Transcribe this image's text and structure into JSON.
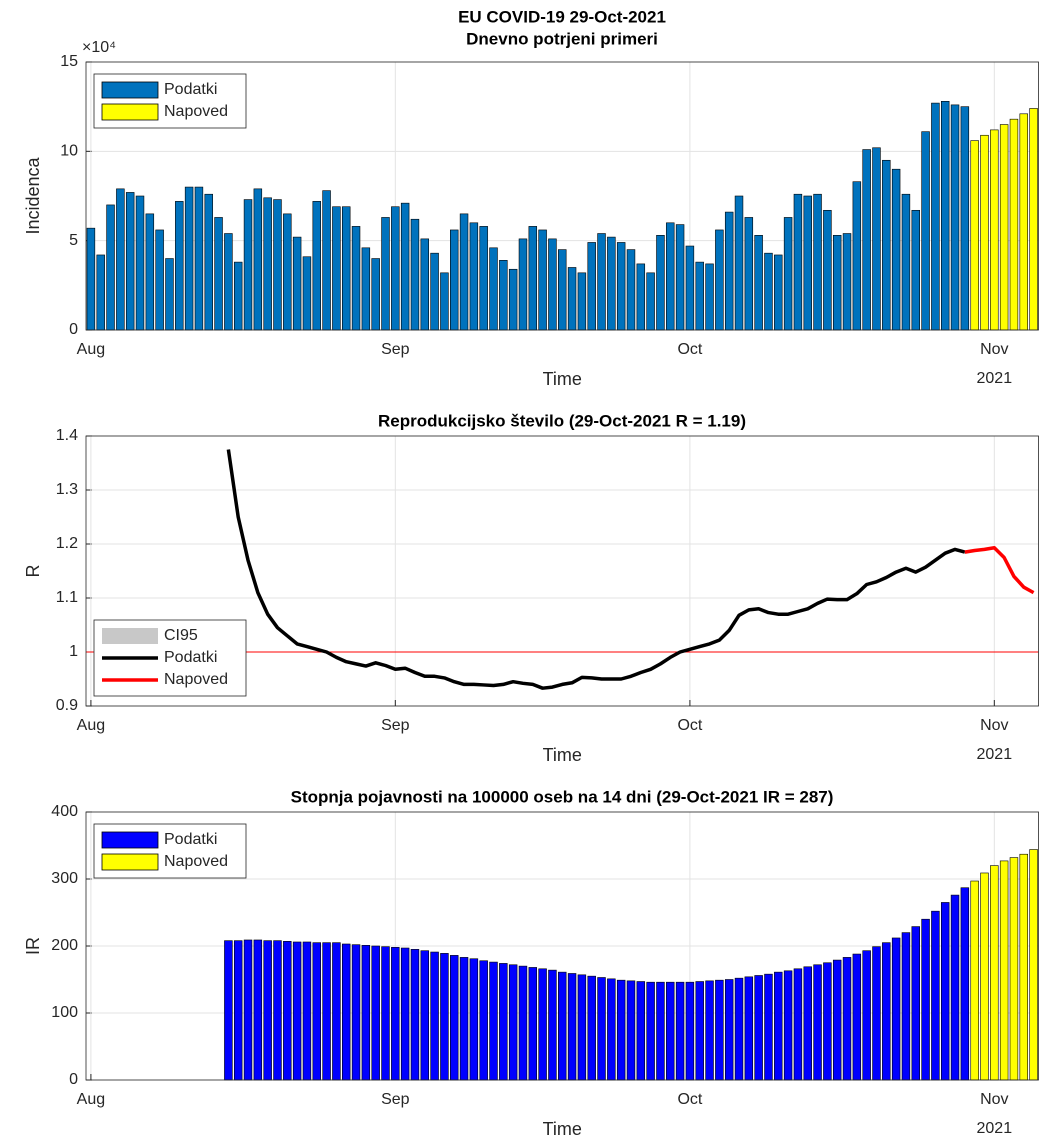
{
  "chart_data": [
    {
      "type": "bar",
      "title": "EU COVID-19 29-Oct-2021",
      "subtitle": "Dnevno potrjeni primeri",
      "xlabel": "Time",
      "x_sublabel": "2021",
      "ylabel": "Incidenca",
      "y_multiplier": "×10⁴",
      "ylim": [
        0,
        15
      ],
      "yticks": [
        0,
        5,
        10,
        15
      ],
      "grid": true,
      "legend": "upper left",
      "categories": [
        "Aug",
        null,
        null,
        null,
        null,
        null,
        null,
        null,
        null,
        null,
        null,
        null,
        null,
        null,
        null,
        null,
        null,
        null,
        null,
        null,
        null,
        null,
        null,
        null,
        null,
        null,
        null,
        null,
        null,
        null,
        null,
        "Sep",
        null,
        null,
        null,
        null,
        null,
        null,
        null,
        null,
        null,
        null,
        null,
        null,
        null,
        null,
        null,
        null,
        null,
        null,
        null,
        null,
        null,
        null,
        null,
        null,
        null,
        null,
        null,
        null,
        null,
        "Oct",
        null,
        null,
        null,
        null,
        null,
        null,
        null,
        null,
        null,
        null,
        null,
        null,
        null,
        null,
        null,
        null,
        null,
        null,
        null,
        null,
        null,
        null,
        null,
        null,
        null,
        null,
        null,
        null,
        null,
        null,
        "Nov",
        null,
        null,
        null,
        null
      ],
      "series": [
        {
          "name": "Podatki",
          "color": "#0072BD",
          "values": [
            5.7,
            4.2,
            7.0,
            7.9,
            7.7,
            7.5,
            6.5,
            5.6,
            4.0,
            7.2,
            8.0,
            8.0,
            7.6,
            6.3,
            5.4,
            3.8,
            7.3,
            7.9,
            7.4,
            7.3,
            6.5,
            5.2,
            4.1,
            7.2,
            7.8,
            6.9,
            6.9,
            5.8,
            4.6,
            4.0,
            6.3,
            6.9,
            7.1,
            6.2,
            5.1,
            4.3,
            3.2,
            5.6,
            6.5,
            6.0,
            5.8,
            4.6,
            3.9,
            3.4,
            5.1,
            5.8,
            5.6,
            5.1,
            4.5,
            3.5,
            3.2,
            4.9,
            5.4,
            5.2,
            4.9,
            4.5,
            3.7,
            3.2,
            5.3,
            6.0,
            5.9,
            4.7,
            3.8,
            3.7,
            5.6,
            6.6,
            7.5,
            6.3,
            5.3,
            4.3,
            4.2,
            6.3,
            7.6,
            7.5,
            7.6,
            6.7,
            5.3,
            5.4,
            8.3,
            10.1,
            10.2,
            9.5,
            9.0,
            7.6,
            6.7,
            11.1,
            12.7,
            12.8,
            12.6,
            12.5,
            null,
            null,
            null,
            null,
            null,
            null,
            null
          ]
        },
        {
          "name": "Napoved",
          "color": "#FFFF00",
          "values": [
            null,
            null,
            null,
            null,
            null,
            null,
            null,
            null,
            null,
            null,
            null,
            null,
            null,
            null,
            null,
            null,
            null,
            null,
            null,
            null,
            null,
            null,
            null,
            null,
            null,
            null,
            null,
            null,
            null,
            null,
            null,
            null,
            null,
            null,
            null,
            null,
            null,
            null,
            null,
            null,
            null,
            null,
            null,
            null,
            null,
            null,
            null,
            null,
            null,
            null,
            null,
            null,
            null,
            null,
            null,
            null,
            null,
            null,
            null,
            null,
            null,
            null,
            null,
            null,
            null,
            null,
            null,
            null,
            null,
            null,
            null,
            null,
            null,
            null,
            null,
            null,
            null,
            null,
            null,
            null,
            null,
            null,
            null,
            null,
            null,
            null,
            null,
            null,
            null,
            null,
            10.6,
            10.9,
            11.2,
            11.5,
            11.8,
            12.1,
            12.4
          ]
        }
      ]
    },
    {
      "type": "line",
      "title": "Reprodukcijsko število (29-Oct-2021 R = 1.19)",
      "xlabel": "Time",
      "x_sublabel": "2021",
      "ylabel": "R",
      "ylim": [
        0.9,
        1.4
      ],
      "yticks": [
        0.9,
        1,
        1.1,
        1.2,
        1.3,
        1.4
      ],
      "grid": true,
      "legend": "lower left",
      "hline": 1,
      "hline_color": "#FF0000",
      "legend_patches": [
        {
          "name": "CI95",
          "color": "#C8C8C8"
        }
      ],
      "categories": [
        "Aug",
        null,
        null,
        null,
        null,
        null,
        null,
        null,
        null,
        null,
        null,
        null,
        null,
        null,
        null,
        null,
        null,
        null,
        null,
        null,
        null,
        null,
        null,
        null,
        null,
        null,
        null,
        null,
        null,
        null,
        null,
        "Sep",
        null,
        null,
        null,
        null,
        null,
        null,
        null,
        null,
        null,
        null,
        null,
        null,
        null,
        null,
        null,
        null,
        null,
        null,
        null,
        null,
        null,
        null,
        null,
        null,
        null,
        null,
        null,
        null,
        null,
        "Oct",
        null,
        null,
        null,
        null,
        null,
        null,
        null,
        null,
        null,
        null,
        null,
        null,
        null,
        null,
        null,
        null,
        null,
        null,
        null,
        null,
        null,
        null,
        null,
        null,
        null,
        null,
        null,
        null,
        null,
        null,
        "Nov",
        null,
        null,
        null,
        null
      ],
      "series": [
        {
          "name": "Podatki",
          "color": "#000000",
          "values": [
            null,
            null,
            null,
            null,
            null,
            null,
            null,
            null,
            null,
            null,
            null,
            null,
            null,
            null,
            1.375,
            1.25,
            1.17,
            1.11,
            1.07,
            1.045,
            1.03,
            1.015,
            1.01,
            1.005,
            1.0,
            0.99,
            0.982,
            0.978,
            0.974,
            0.98,
            0.975,
            0.968,
            0.97,
            0.962,
            0.955,
            0.955,
            0.952,
            0.945,
            0.94,
            0.94,
            0.939,
            0.938,
            0.94,
            0.945,
            0.942,
            0.94,
            0.933,
            0.935,
            0.94,
            0.943,
            0.953,
            0.952,
            0.95,
            0.95,
            0.95,
            0.955,
            0.962,
            0.968,
            0.978,
            0.99,
            1.0,
            1.005,
            1.01,
            1.015,
            1.022,
            1.04,
            1.068,
            1.078,
            1.08,
            1.073,
            1.07,
            1.07,
            1.075,
            1.08,
            1.09,
            1.098,
            1.097,
            1.097,
            1.108,
            1.125,
            1.13,
            1.138,
            1.148,
            1.155,
            1.148,
            1.157,
            1.17,
            1.183,
            1.19,
            1.185,
            null,
            null,
            null,
            null,
            null,
            null,
            null
          ]
        },
        {
          "name": "Napoved",
          "color": "#FF0000",
          "values": [
            null,
            null,
            null,
            null,
            null,
            null,
            null,
            null,
            null,
            null,
            null,
            null,
            null,
            null,
            null,
            null,
            null,
            null,
            null,
            null,
            null,
            null,
            null,
            null,
            null,
            null,
            null,
            null,
            null,
            null,
            null,
            null,
            null,
            null,
            null,
            null,
            null,
            null,
            null,
            null,
            null,
            null,
            null,
            null,
            null,
            null,
            null,
            null,
            null,
            null,
            null,
            null,
            null,
            null,
            null,
            null,
            null,
            null,
            null,
            null,
            null,
            null,
            null,
            null,
            null,
            null,
            null,
            null,
            null,
            null,
            null,
            null,
            null,
            null,
            null,
            null,
            null,
            null,
            null,
            null,
            null,
            null,
            null,
            null,
            null,
            null,
            null,
            null,
            null,
            1.185,
            1.188,
            1.19,
            1.193,
            1.175,
            1.14,
            1.12,
            1.11
          ]
        }
      ]
    },
    {
      "type": "bar",
      "title": "Stopnja pojavnosti na 100000 oseb na 14 dni (29-Oct-2021 IR = 287)",
      "xlabel": "Time",
      "x_sublabel": "2021",
      "ylabel": "IR",
      "ylim": [
        0,
        400
      ],
      "yticks": [
        0,
        100,
        200,
        300,
        400
      ],
      "grid": true,
      "legend": "upper left",
      "categories": [
        "Aug",
        null,
        null,
        null,
        null,
        null,
        null,
        null,
        null,
        null,
        null,
        null,
        null,
        null,
        null,
        null,
        null,
        null,
        null,
        null,
        null,
        null,
        null,
        null,
        null,
        null,
        null,
        null,
        null,
        null,
        null,
        "Sep",
        null,
        null,
        null,
        null,
        null,
        null,
        null,
        null,
        null,
        null,
        null,
        null,
        null,
        null,
        null,
        null,
        null,
        null,
        null,
        null,
        null,
        null,
        null,
        null,
        null,
        null,
        null,
        null,
        null,
        "Oct",
        null,
        null,
        null,
        null,
        null,
        null,
        null,
        null,
        null,
        null,
        null,
        null,
        null,
        null,
        null,
        null,
        null,
        null,
        null,
        null,
        null,
        null,
        null,
        null,
        null,
        null,
        null,
        null,
        null,
        null,
        "Nov",
        null,
        null,
        null,
        null
      ],
      "series": [
        {
          "name": "Podatki",
          "color": "#0000FF",
          "values": [
            null,
            null,
            null,
            null,
            null,
            null,
            null,
            null,
            null,
            null,
            null,
            null,
            null,
            null,
            208,
            208,
            209,
            209,
            208,
            208,
            207,
            206,
            206,
            205,
            205,
            205,
            203,
            202,
            201,
            200,
            199,
            198,
            197,
            195,
            193,
            191,
            189,
            186,
            183,
            181,
            178,
            176,
            174,
            172,
            170,
            168,
            166,
            164,
            161,
            159,
            157,
            155,
            153,
            151,
            149,
            148,
            147,
            146,
            146,
            146,
            146,
            146,
            147,
            148,
            149,
            150,
            152,
            154,
            156,
            158,
            161,
            163,
            166,
            169,
            172,
            175,
            179,
            183,
            188,
            193,
            199,
            205,
            212,
            220,
            229,
            240,
            252,
            265,
            276,
            287,
            null,
            null,
            null,
            null,
            null,
            null,
            null
          ]
        },
        {
          "name": "Napoved",
          "color": "#FFFF00",
          "values": [
            null,
            null,
            null,
            null,
            null,
            null,
            null,
            null,
            null,
            null,
            null,
            null,
            null,
            null,
            null,
            null,
            null,
            null,
            null,
            null,
            null,
            null,
            null,
            null,
            null,
            null,
            null,
            null,
            null,
            null,
            null,
            null,
            null,
            null,
            null,
            null,
            null,
            null,
            null,
            null,
            null,
            null,
            null,
            null,
            null,
            null,
            null,
            null,
            null,
            null,
            null,
            null,
            null,
            null,
            null,
            null,
            null,
            null,
            null,
            null,
            null,
            null,
            null,
            null,
            null,
            null,
            null,
            null,
            null,
            null,
            null,
            null,
            null,
            null,
            null,
            null,
            null,
            null,
            null,
            null,
            null,
            null,
            null,
            null,
            null,
            null,
            null,
            null,
            null,
            null,
            297,
            309,
            320,
            327,
            332,
            337,
            344
          ]
        }
      ]
    }
  ]
}
